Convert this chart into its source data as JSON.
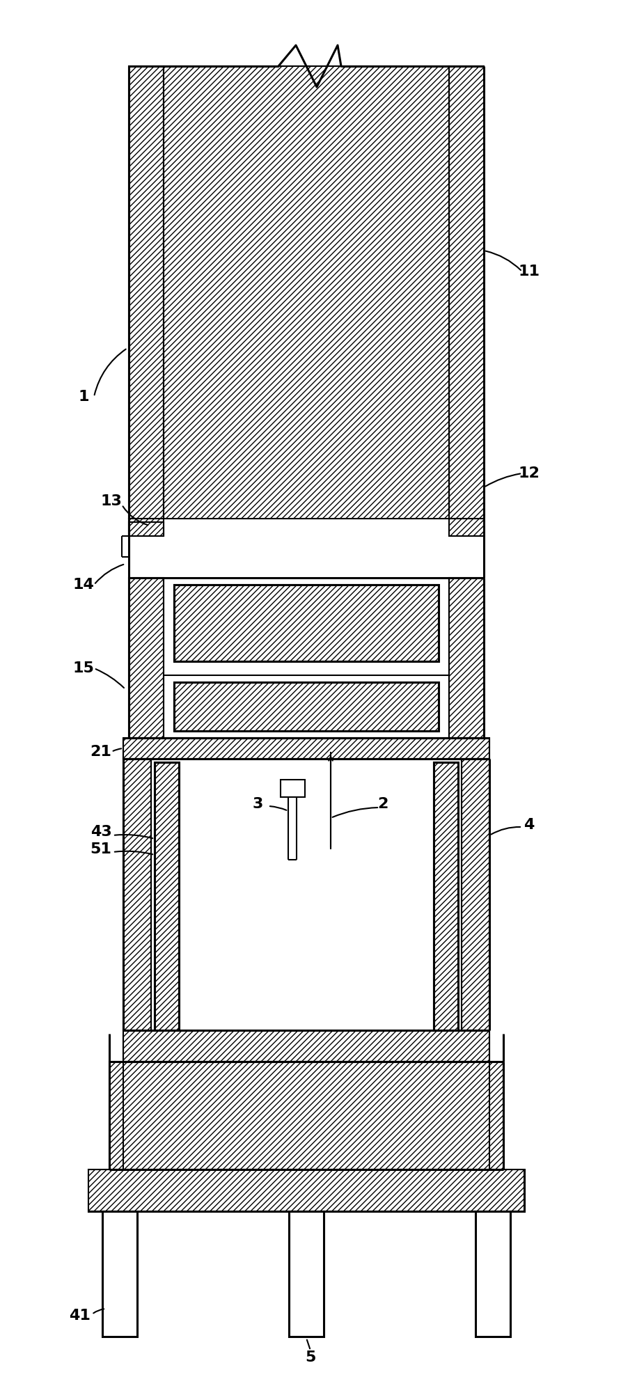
{
  "bg_color": "#ffffff",
  "lw": 1.5,
  "lw2": 2.2,
  "fig_w": 8.92,
  "fig_h": 19.91,
  "dpi": 100
}
